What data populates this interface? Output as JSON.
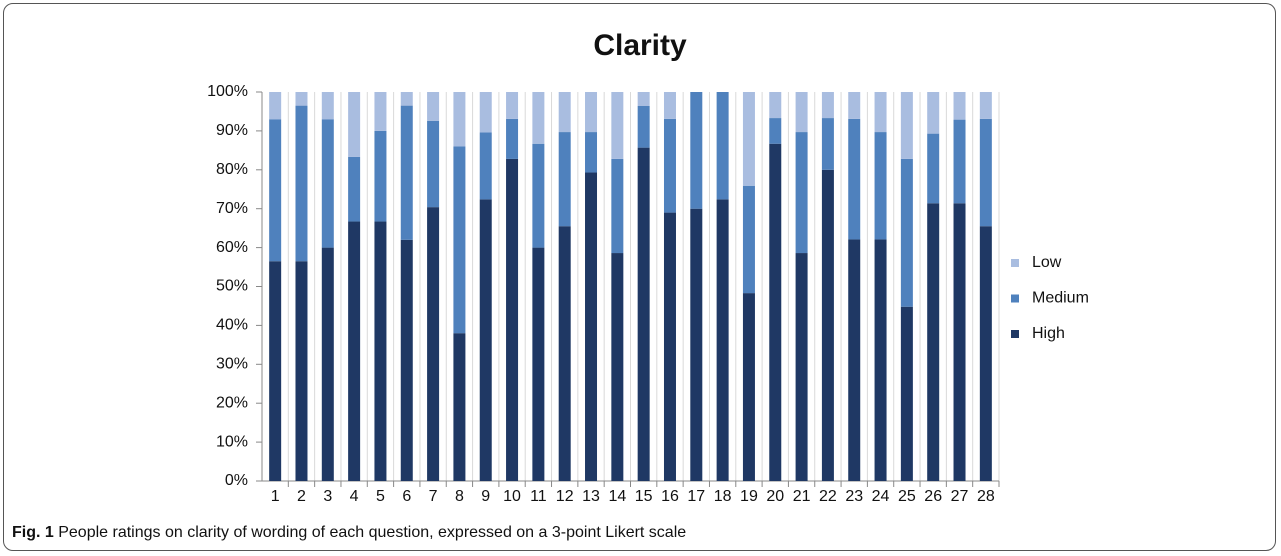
{
  "chart_data": {
    "type": "stacked_bar",
    "title": "Clarity",
    "categories": [
      "1",
      "2",
      "3",
      "4",
      "5",
      "6",
      "7",
      "8",
      "9",
      "10",
      "11",
      "12",
      "13",
      "14",
      "15",
      "16",
      "17",
      "18",
      "19",
      "20",
      "21",
      "22",
      "23",
      "24",
      "25",
      "26",
      "27",
      "28"
    ],
    "series": [
      {
        "name": "High",
        "color": "#1f3864",
        "values": [
          56.5,
          56.5,
          60,
          66.7,
          66.7,
          62,
          70.4,
          38,
          72.4,
          82.8,
          60,
          65.5,
          79.3,
          58.6,
          85.7,
          69,
          70,
          72.4,
          48.3,
          86.7,
          58.6,
          80,
          62.1,
          62.1,
          44.8,
          71.4,
          71.4,
          65.5
        ]
      },
      {
        "name": "Medium",
        "color": "#4f81bd",
        "values": [
          36.5,
          40,
          33,
          16.6,
          23.3,
          34.5,
          22.2,
          48,
          17.2,
          10.3,
          26.7,
          24.2,
          10.4,
          24.2,
          10.7,
          24.1,
          30,
          27.6,
          27.6,
          6.6,
          31.1,
          13.3,
          31,
          27.6,
          38,
          17.9,
          21.5,
          27.6
        ]
      },
      {
        "name": "Low",
        "color": "#a9bde0",
        "values": [
          7,
          3.5,
          7,
          16.7,
          10,
          3.5,
          7.4,
          14,
          10.4,
          6.9,
          13.3,
          10.3,
          10.3,
          17.2,
          3.6,
          6.9,
          0,
          0,
          24.1,
          6.7,
          10.3,
          6.7,
          6.9,
          10.3,
          17.2,
          10.7,
          7.1,
          6.9
        ]
      }
    ],
    "ylim": [
      0,
      100
    ],
    "yticks": [
      {
        "value": 0,
        "label": "0%"
      },
      {
        "value": 10,
        "label": "10%"
      },
      {
        "value": 20,
        "label": "20%"
      },
      {
        "value": 30,
        "label": "30%"
      },
      {
        "value": 40,
        "label": "40%"
      },
      {
        "value": 50,
        "label": "50%"
      },
      {
        "value": 60,
        "label": "60%"
      },
      {
        "value": 70,
        "label": "70%"
      },
      {
        "value": 80,
        "label": "80%"
      },
      {
        "value": 90,
        "label": "90%"
      },
      {
        "value": 100,
        "label": "100%"
      }
    ],
    "legend": "right"
  },
  "caption": {
    "label": "Fig. 1",
    "text": "People ratings on clarity of wording of each question, expressed on a 3-point Likert scale"
  }
}
